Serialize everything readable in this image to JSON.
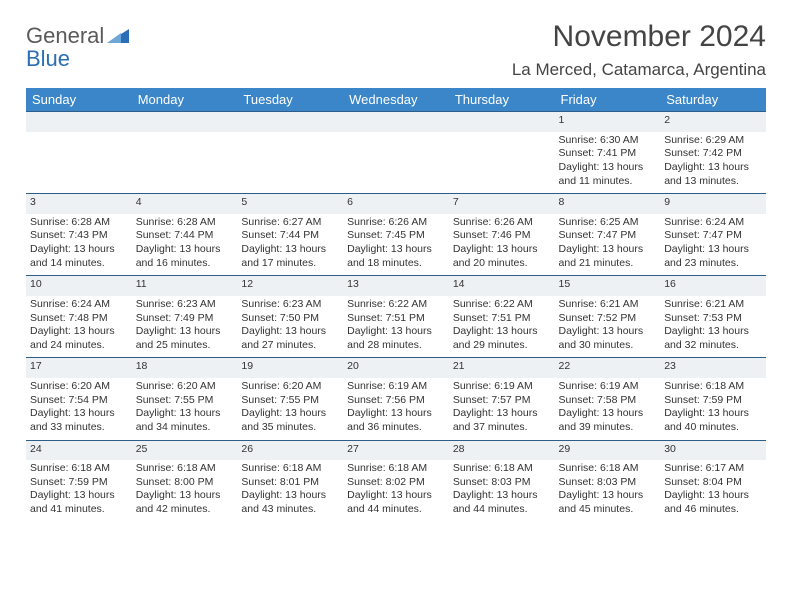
{
  "brand": {
    "line1": "General",
    "line2": "Blue",
    "logo_color": "#2a6fb5"
  },
  "title": "November 2024",
  "location": "La Merced, Catamarca, Argentina",
  "colors": {
    "header_bg": "#3a86c8",
    "header_text": "#ffffff",
    "daynum_bg": "#eef1f3",
    "daynum_border": "#2f5d8a",
    "body_text": "#333333",
    "page_bg": "#ffffff"
  },
  "typography": {
    "title_fontsize": 30,
    "location_fontsize": 17,
    "header_fontsize": 13,
    "cell_fontsize": 10.5
  },
  "day_headers": [
    "Sunday",
    "Monday",
    "Tuesday",
    "Wednesday",
    "Thursday",
    "Friday",
    "Saturday"
  ],
  "weeks": [
    {
      "nums": [
        "",
        "",
        "",
        "",
        "",
        "1",
        "2"
      ],
      "details": [
        "",
        "",
        "",
        "",
        "",
        "Sunrise: 6:30 AM\nSunset: 7:41 PM\nDaylight: 13 hours and 11 minutes.",
        "Sunrise: 6:29 AM\nSunset: 7:42 PM\nDaylight: 13 hours and 13 minutes."
      ]
    },
    {
      "nums": [
        "3",
        "4",
        "5",
        "6",
        "7",
        "8",
        "9"
      ],
      "details": [
        "Sunrise: 6:28 AM\nSunset: 7:43 PM\nDaylight: 13 hours and 14 minutes.",
        "Sunrise: 6:28 AM\nSunset: 7:44 PM\nDaylight: 13 hours and 16 minutes.",
        "Sunrise: 6:27 AM\nSunset: 7:44 PM\nDaylight: 13 hours and 17 minutes.",
        "Sunrise: 6:26 AM\nSunset: 7:45 PM\nDaylight: 13 hours and 18 minutes.",
        "Sunrise: 6:26 AM\nSunset: 7:46 PM\nDaylight: 13 hours and 20 minutes.",
        "Sunrise: 6:25 AM\nSunset: 7:47 PM\nDaylight: 13 hours and 21 minutes.",
        "Sunrise: 6:24 AM\nSunset: 7:47 PM\nDaylight: 13 hours and 23 minutes."
      ]
    },
    {
      "nums": [
        "10",
        "11",
        "12",
        "13",
        "14",
        "15",
        "16"
      ],
      "details": [
        "Sunrise: 6:24 AM\nSunset: 7:48 PM\nDaylight: 13 hours and 24 minutes.",
        "Sunrise: 6:23 AM\nSunset: 7:49 PM\nDaylight: 13 hours and 25 minutes.",
        "Sunrise: 6:23 AM\nSunset: 7:50 PM\nDaylight: 13 hours and 27 minutes.",
        "Sunrise: 6:22 AM\nSunset: 7:51 PM\nDaylight: 13 hours and 28 minutes.",
        "Sunrise: 6:22 AM\nSunset: 7:51 PM\nDaylight: 13 hours and 29 minutes.",
        "Sunrise: 6:21 AM\nSunset: 7:52 PM\nDaylight: 13 hours and 30 minutes.",
        "Sunrise: 6:21 AM\nSunset: 7:53 PM\nDaylight: 13 hours and 32 minutes."
      ]
    },
    {
      "nums": [
        "17",
        "18",
        "19",
        "20",
        "21",
        "22",
        "23"
      ],
      "details": [
        "Sunrise: 6:20 AM\nSunset: 7:54 PM\nDaylight: 13 hours and 33 minutes.",
        "Sunrise: 6:20 AM\nSunset: 7:55 PM\nDaylight: 13 hours and 34 minutes.",
        "Sunrise: 6:20 AM\nSunset: 7:55 PM\nDaylight: 13 hours and 35 minutes.",
        "Sunrise: 6:19 AM\nSunset: 7:56 PM\nDaylight: 13 hours and 36 minutes.",
        "Sunrise: 6:19 AM\nSunset: 7:57 PM\nDaylight: 13 hours and 37 minutes.",
        "Sunrise: 6:19 AM\nSunset: 7:58 PM\nDaylight: 13 hours and 39 minutes.",
        "Sunrise: 6:18 AM\nSunset: 7:59 PM\nDaylight: 13 hours and 40 minutes."
      ]
    },
    {
      "nums": [
        "24",
        "25",
        "26",
        "27",
        "28",
        "29",
        "30"
      ],
      "details": [
        "Sunrise: 6:18 AM\nSunset: 7:59 PM\nDaylight: 13 hours and 41 minutes.",
        "Sunrise: 6:18 AM\nSunset: 8:00 PM\nDaylight: 13 hours and 42 minutes.",
        "Sunrise: 6:18 AM\nSunset: 8:01 PM\nDaylight: 13 hours and 43 minutes.",
        "Sunrise: 6:18 AM\nSunset: 8:02 PM\nDaylight: 13 hours and 44 minutes.",
        "Sunrise: 6:18 AM\nSunset: 8:03 PM\nDaylight: 13 hours and 44 minutes.",
        "Sunrise: 6:18 AM\nSunset: 8:03 PM\nDaylight: 13 hours and 45 minutes.",
        "Sunrise: 6:17 AM\nSunset: 8:04 PM\nDaylight: 13 hours and 46 minutes."
      ]
    }
  ]
}
